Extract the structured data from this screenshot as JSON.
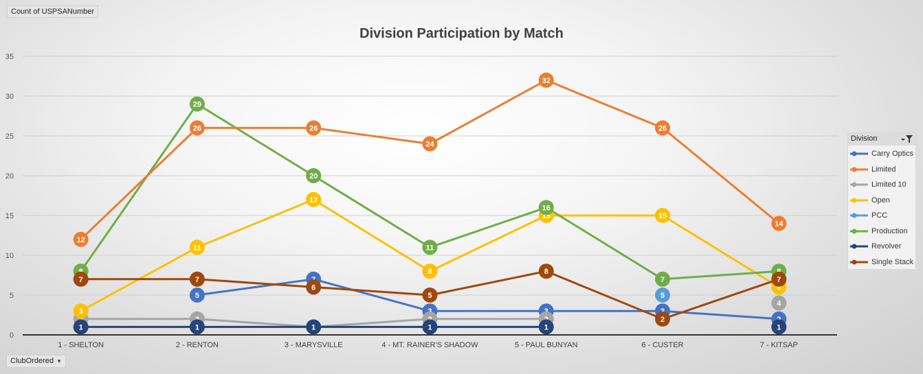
{
  "value_field_label": "Count of USPSANumber",
  "axis_field_label": "ClubOrdered",
  "axis_field_caret": "▼",
  "legend_title": "Division",
  "colors": {
    "Carry Optics": "#4472c4",
    "Limited": "#ed7d31",
    "Limited 10": "#a5a5a5",
    "Open": "#ffc000",
    "PCC": "#5b9bd5",
    "Production": "#70ad47",
    "Revolver": "#264478",
    "Single Stack": "#9e480e"
  },
  "chart_data": {
    "type": "line",
    "title": "Division Participation by Match",
    "xlabel": "",
    "ylabel": "",
    "ylim": [
      0,
      35
    ],
    "yticks": [
      0,
      5,
      10,
      15,
      20,
      25,
      30,
      35
    ],
    "grid": true,
    "legend_position": "right",
    "categories": [
      "1 - SHELTON",
      "2 - RENTON",
      "3 - MARYSVILLE",
      "4 - MT. RAINER'S SHADOW",
      "5 - PAUL BUNYAN",
      "6 - CUSTER",
      "7 - KITSAP"
    ],
    "series": [
      {
        "name": "Carry Optics",
        "values": [
          null,
          5,
          7,
          3,
          3,
          3,
          2
        ]
      },
      {
        "name": "Limited",
        "values": [
          12,
          26,
          26,
          24,
          32,
          26,
          14
        ]
      },
      {
        "name": "Limited 10",
        "values": [
          2,
          2,
          1,
          2,
          2,
          null,
          4
        ]
      },
      {
        "name": "Open",
        "values": [
          3,
          11,
          17,
          8,
          15,
          15,
          6
        ]
      },
      {
        "name": "PCC",
        "values": [
          null,
          null,
          null,
          null,
          null,
          5,
          null
        ]
      },
      {
        "name": "Production",
        "values": [
          8,
          29,
          20,
          11,
          16,
          7,
          8
        ]
      },
      {
        "name": "Revolver",
        "values": [
          1,
          1,
          1,
          1,
          1,
          null,
          1
        ]
      },
      {
        "name": "Single Stack",
        "values": [
          7,
          7,
          6,
          5,
          8,
          2,
          7
        ]
      }
    ],
    "draw_order": [
      "Carry Optics",
      "Limited 10",
      "Open",
      "PCC",
      "Production",
      "Limited",
      "Single Stack",
      "Revolver"
    ]
  }
}
